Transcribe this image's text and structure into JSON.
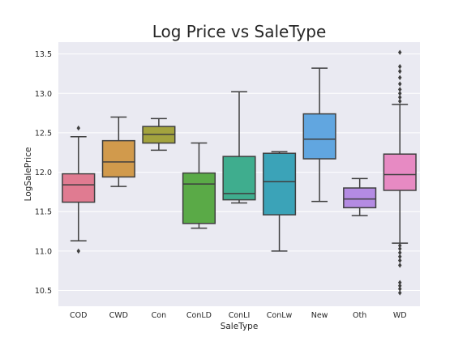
{
  "chart_data": {
    "type": "box",
    "title": "Log Price vs SaleType",
    "xlabel": "SaleType",
    "ylabel": "LogSalePrice",
    "ylim": [
      10.3,
      13.65
    ],
    "yticks": [
      10.5,
      11.0,
      11.5,
      12.0,
      12.5,
      13.0,
      13.5
    ],
    "ytick_labels": [
      "10.5",
      "11.0",
      "11.5",
      "12.0",
      "12.5",
      "13.0",
      "13.5"
    ],
    "grid": true,
    "categories": [
      "COD",
      "CWD",
      "Con",
      "ConLD",
      "ConLI",
      "ConLw",
      "New",
      "Oth",
      "WD"
    ],
    "boxes": [
      {
        "category": "COD",
        "color": "#e07b91",
        "whisker_low": 11.13,
        "q1": 11.62,
        "median": 11.84,
        "q3": 11.98,
        "whisker_high": 12.45,
        "outliers": [
          12.56,
          11.0
        ]
      },
      {
        "category": "CWD",
        "color": "#d19a4c",
        "whisker_low": 11.82,
        "q1": 11.94,
        "median": 12.13,
        "q3": 12.4,
        "whisker_high": 12.7,
        "outliers": []
      },
      {
        "category": "Con",
        "color": "#a3a33e",
        "whisker_low": 12.28,
        "q1": 12.37,
        "median": 12.48,
        "q3": 12.58,
        "whisker_high": 12.68,
        "outliers": []
      },
      {
        "category": "ConLD",
        "color": "#5aaa47",
        "whisker_low": 11.29,
        "q1": 11.35,
        "median": 11.85,
        "q3": 11.99,
        "whisker_high": 12.37,
        "outliers": []
      },
      {
        "category": "ConLI",
        "color": "#3fad8e",
        "whisker_low": 11.61,
        "q1": 11.65,
        "median": 11.73,
        "q3": 12.2,
        "whisker_high": 13.02,
        "outliers": []
      },
      {
        "category": "ConLw",
        "color": "#3ba3b8",
        "whisker_low": 11.0,
        "q1": 11.46,
        "median": 11.88,
        "q3": 12.24,
        "whisker_high": 12.26,
        "outliers": []
      },
      {
        "category": "New",
        "color": "#61a6e0",
        "whisker_low": 11.63,
        "q1": 12.17,
        "median": 12.42,
        "q3": 12.74,
        "whisker_high": 13.32,
        "outliers": []
      },
      {
        "category": "Oth",
        "color": "#b48be3",
        "whisker_low": 11.45,
        "q1": 11.55,
        "median": 11.66,
        "q3": 11.8,
        "whisker_high": 11.92,
        "outliers": []
      },
      {
        "category": "WD",
        "color": "#e78ac3",
        "whisker_low": 11.1,
        "q1": 11.77,
        "median": 11.97,
        "q3": 12.23,
        "whisker_high": 12.86,
        "outliers": [
          12.9,
          12.95,
          13.0,
          13.05,
          13.12,
          13.2,
          13.28,
          13.34,
          13.52,
          11.07,
          11.03,
          10.98,
          10.93,
          10.88,
          10.82,
          10.6,
          10.56,
          10.52,
          10.47
        ]
      }
    ]
  }
}
